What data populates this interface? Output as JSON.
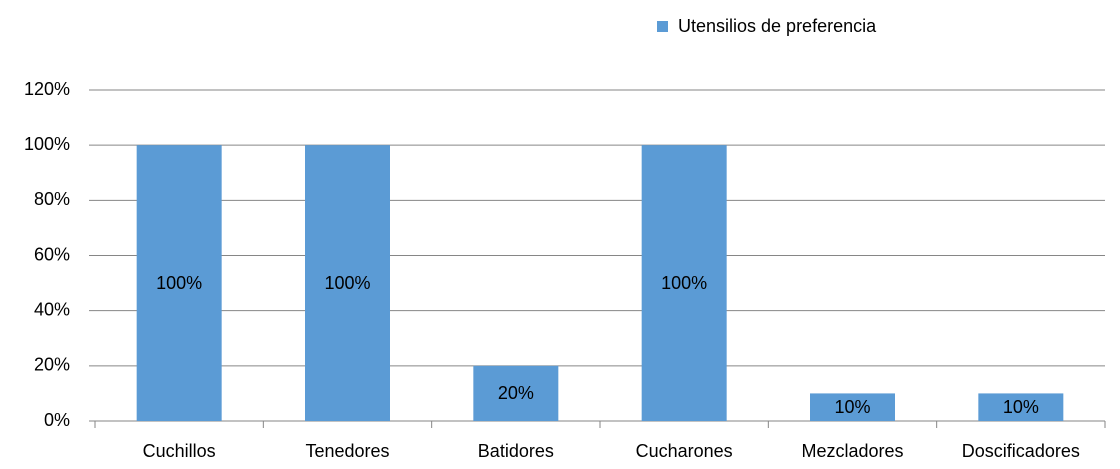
{
  "chart_data": {
    "type": "bar",
    "categories": [
      "Cuchillos",
      "Tenedores",
      "Batidores",
      "Cucharones",
      "Mezcladores",
      "Doscificadores"
    ],
    "series": [
      {
        "name": "Utensilios de preferencia",
        "color": "#5b9bd5",
        "values": [
          100,
          100,
          20,
          100,
          10,
          10
        ],
        "value_labels": [
          "100%",
          "100%",
          "20%",
          "100%",
          "10%",
          "10%"
        ]
      }
    ],
    "ylim": [
      0,
      120
    ],
    "yticks": [
      {
        "value": 0,
        "label": "0%"
      },
      {
        "value": 20,
        "label": "20%"
      },
      {
        "value": 40,
        "label": "40%"
      },
      {
        "value": 60,
        "label": "60%"
      },
      {
        "value": 80,
        "label": "80%"
      },
      {
        "value": 100,
        "label": "100%"
      },
      {
        "value": 120,
        "label": "120%"
      }
    ],
    "grid": true,
    "legend": "top-right"
  }
}
